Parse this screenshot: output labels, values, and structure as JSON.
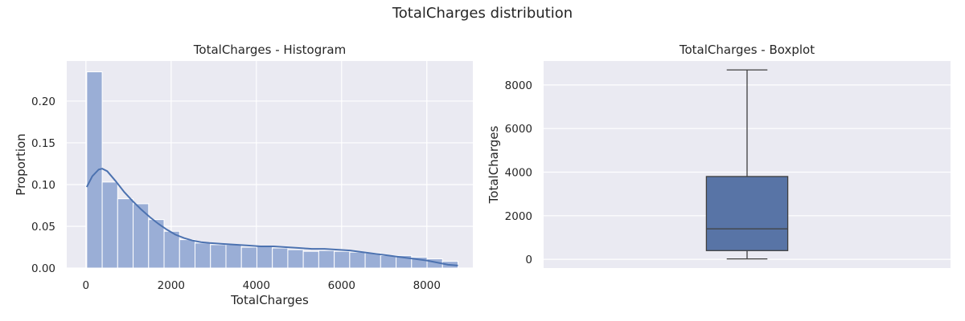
{
  "figure_title": "TotalCharges distribution",
  "style": {
    "axes_bg": "#eaeaf2",
    "grid": "#ffffff",
    "bar_fill": "#9aaed6",
    "bar_edge": "#ffffff",
    "kde_line": "#4c72b0",
    "box_fill": "#5874a6",
    "box_line": "#3f3f3f"
  },
  "chart_data": [
    {
      "type": "bar",
      "subtype": "histogram",
      "title": "TotalCharges - Histogram",
      "xlabel": "TotalCharges",
      "ylabel": "Proportion",
      "xlim": [
        -450,
        9080
      ],
      "ylim": [
        0,
        0.248
      ],
      "xticks": [
        0,
        2000,
        4000,
        6000,
        8000
      ],
      "xtick_labels": [
        "0",
        "2000",
        "4000",
        "6000",
        "8000"
      ],
      "yticks": [
        0,
        0.05,
        0.1,
        0.15,
        0.2
      ],
      "ytick_labels": [
        "0.00",
        "0.05",
        "0.10",
        "0.15",
        "0.20"
      ],
      "grid": true,
      "bin_edges": [
        19,
        382,
        745,
        1108,
        1471,
        1834,
        2197,
        2560,
        2923,
        3286,
        3649,
        4012,
        4375,
        4738,
        5101,
        5464,
        5827,
        6190,
        6553,
        6916,
        7279,
        7642,
        8005,
        8368,
        8731
      ],
      "values": [
        0.235,
        0.103,
        0.083,
        0.077,
        0.058,
        0.044,
        0.034,
        0.03,
        0.028,
        0.028,
        0.025,
        0.026,
        0.024,
        0.022,
        0.02,
        0.021,
        0.02,
        0.019,
        0.018,
        0.015,
        0.015,
        0.013,
        0.011,
        0.008
      ],
      "kde": {
        "x": [
          19,
          150,
          300,
          383,
          500,
          700,
          900,
          1100,
          1300,
          1500,
          1700,
          1900,
          2100,
          2300,
          2500,
          2700,
          2900,
          3200,
          3500,
          3800,
          4100,
          4400,
          4700,
          5000,
          5300,
          5600,
          5900,
          6200,
          6500,
          6800,
          7100,
          7400,
          7700,
          8000,
          8300,
          8500,
          8731
        ],
        "y": [
          0.097,
          0.11,
          0.118,
          0.119,
          0.116,
          0.104,
          0.091,
          0.08,
          0.07,
          0.061,
          0.053,
          0.046,
          0.04,
          0.036,
          0.033,
          0.031,
          0.03,
          0.029,
          0.028,
          0.027,
          0.026,
          0.026,
          0.025,
          0.024,
          0.023,
          0.023,
          0.022,
          0.021,
          0.019,
          0.017,
          0.015,
          0.013,
          0.011,
          0.009,
          0.006,
          0.004,
          0.003
        ]
      }
    },
    {
      "type": "boxplot",
      "title": "TotalCharges - Boxplot",
      "ylabel": "TotalCharges",
      "ylim": [
        -400,
        9100
      ],
      "yticks": [
        0,
        2000,
        4000,
        6000,
        8000
      ],
      "ytick_labels": [
        "0",
        "2000",
        "4000",
        "6000",
        "8000"
      ],
      "grid": true,
      "stats": {
        "min": 19,
        "q1": 400,
        "median": 1400,
        "q3": 3800,
        "max": 8690
      }
    }
  ]
}
